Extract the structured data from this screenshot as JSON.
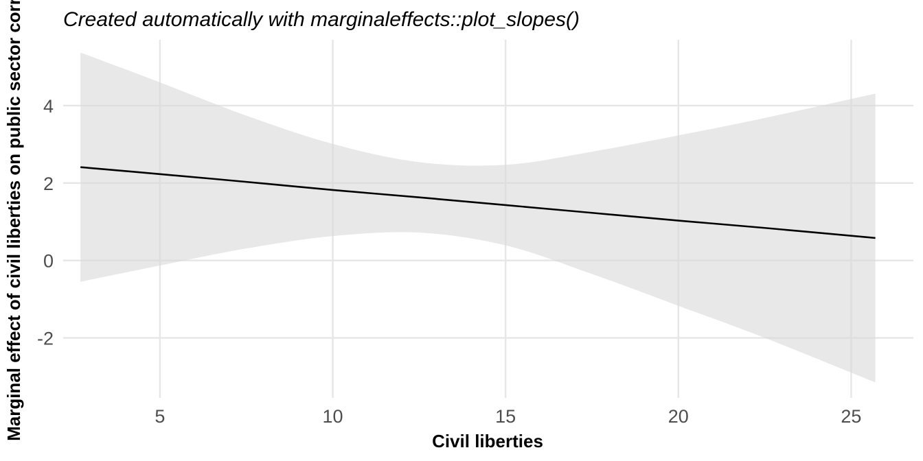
{
  "chart_data": {
    "type": "line",
    "title": "Created automatically with marginaleffects::plot_slopes()",
    "xlabel": "Civil liberties",
    "ylabel": "Marginal effect of civil liberties on public sector corr",
    "xlim": [
      2.2,
      26.8
    ],
    "ylim": [
      -3.55,
      5.7
    ],
    "x_ticks": [
      5,
      10,
      15,
      20,
      25
    ],
    "y_ticks": [
      -2,
      0,
      2,
      4
    ],
    "x_tick_labels": [
      "5",
      "10",
      "15",
      "20",
      "25"
    ],
    "y_tick_labels": [
      "-2",
      "0",
      "2",
      "4"
    ],
    "grid": true,
    "legend": "none",
    "series": [
      {
        "x": [
          2.7,
          5,
          7.5,
          10,
          12.5,
          15,
          17.5,
          20,
          22.5,
          25.7
        ],
        "estimate": [
          2.41,
          2.23,
          2.03,
          1.82,
          1.63,
          1.43,
          1.23,
          1.03,
          0.84,
          0.58
        ],
        "conf_low": [
          -0.55,
          -0.13,
          0.31,
          0.63,
          0.72,
          0.39,
          -0.35,
          -1.17,
          -2.0,
          -3.15
        ],
        "conf_high": [
          5.37,
          4.6,
          3.74,
          3.01,
          2.54,
          2.47,
          2.81,
          3.23,
          3.68,
          4.31
        ]
      }
    ],
    "colors": {
      "line": "#000000",
      "band": "#d9d9d9",
      "grid": "#e6e6e6",
      "tick_text": "#4d4d4d"
    }
  }
}
